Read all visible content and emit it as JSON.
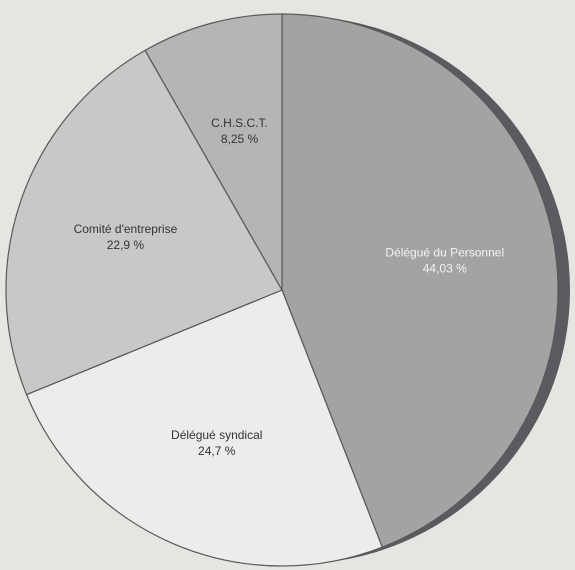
{
  "chart_data": {
    "type": "pie",
    "title": "",
    "slices": [
      {
        "label": "Délégué du Personnel",
        "value": 44.03,
        "display": "44,03 %",
        "color": "#a3a3a3",
        "label_color": "#f2f2f2"
      },
      {
        "label": "Délégué syndical",
        "value": 24.7,
        "display": "24,7 %",
        "color": "#ececec",
        "label_color": "#333333"
      },
      {
        "label": "Comité d'entreprise",
        "value": 22.9,
        "display": "22,9 %",
        "color": "#c8c8c8",
        "label_color": "#333333"
      },
      {
        "label": "C.H.S.C.T.",
        "value": 8.25,
        "display": "8,25 %",
        "color": "#b5b5b5",
        "label_color": "#333333"
      }
    ],
    "start_angle_deg": 0,
    "direction": "clockwise",
    "shadow_color": "#5a5a60",
    "legend": "none"
  }
}
